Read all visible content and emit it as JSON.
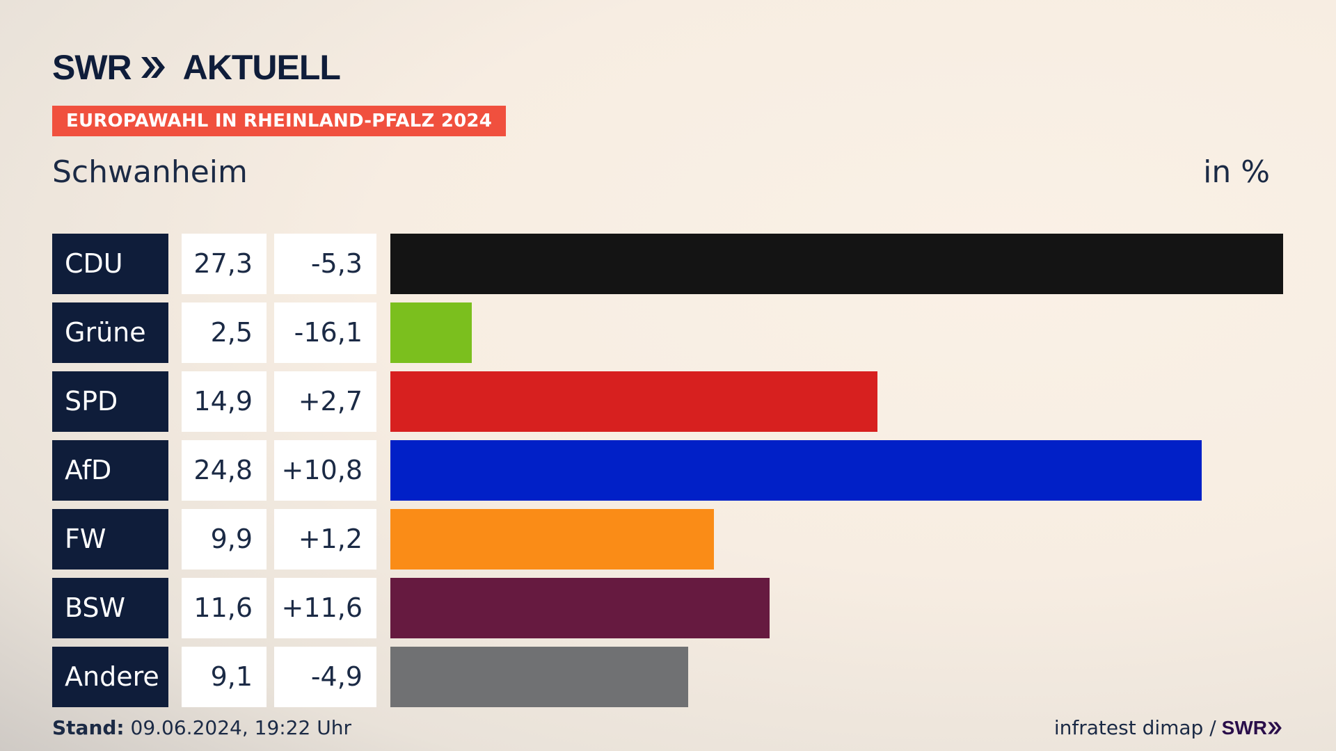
{
  "brand": {
    "swr": "SWR",
    "aktuell": "AKTUELL"
  },
  "tag": "EUROPAWAHL IN RHEINLAND-PFALZ 2024",
  "place": "Schwanheim",
  "unit": "in %",
  "chart_data": {
    "type": "bar",
    "categories": [
      "CDU",
      "Grüne",
      "SPD",
      "AfD",
      "FW",
      "BSW",
      "Andere"
    ],
    "values": [
      27.3,
      2.5,
      14.9,
      24.8,
      9.9,
      11.6,
      9.1
    ],
    "value_labels": [
      "27,3",
      "2,5",
      "14,9",
      "24,8",
      "9,9",
      "11,6",
      "9,1"
    ],
    "diff_labels": [
      "-5,3",
      "-16,1",
      "+2,7",
      "+10,8",
      "+1,2",
      "+11,6",
      "-4,9"
    ],
    "colors": [
      "#141414",
      "#7bbf1e",
      "#d7201f",
      "#0120c7",
      "#fa8c17",
      "#661a40",
      "#707173"
    ],
    "orientation": "horizontal"
  },
  "footer": {
    "stand_label": "Stand:",
    "stand_value": " 09.06.2024, 19:22 Uhr",
    "source": "infratest dimap /",
    "swr": "SWR"
  }
}
